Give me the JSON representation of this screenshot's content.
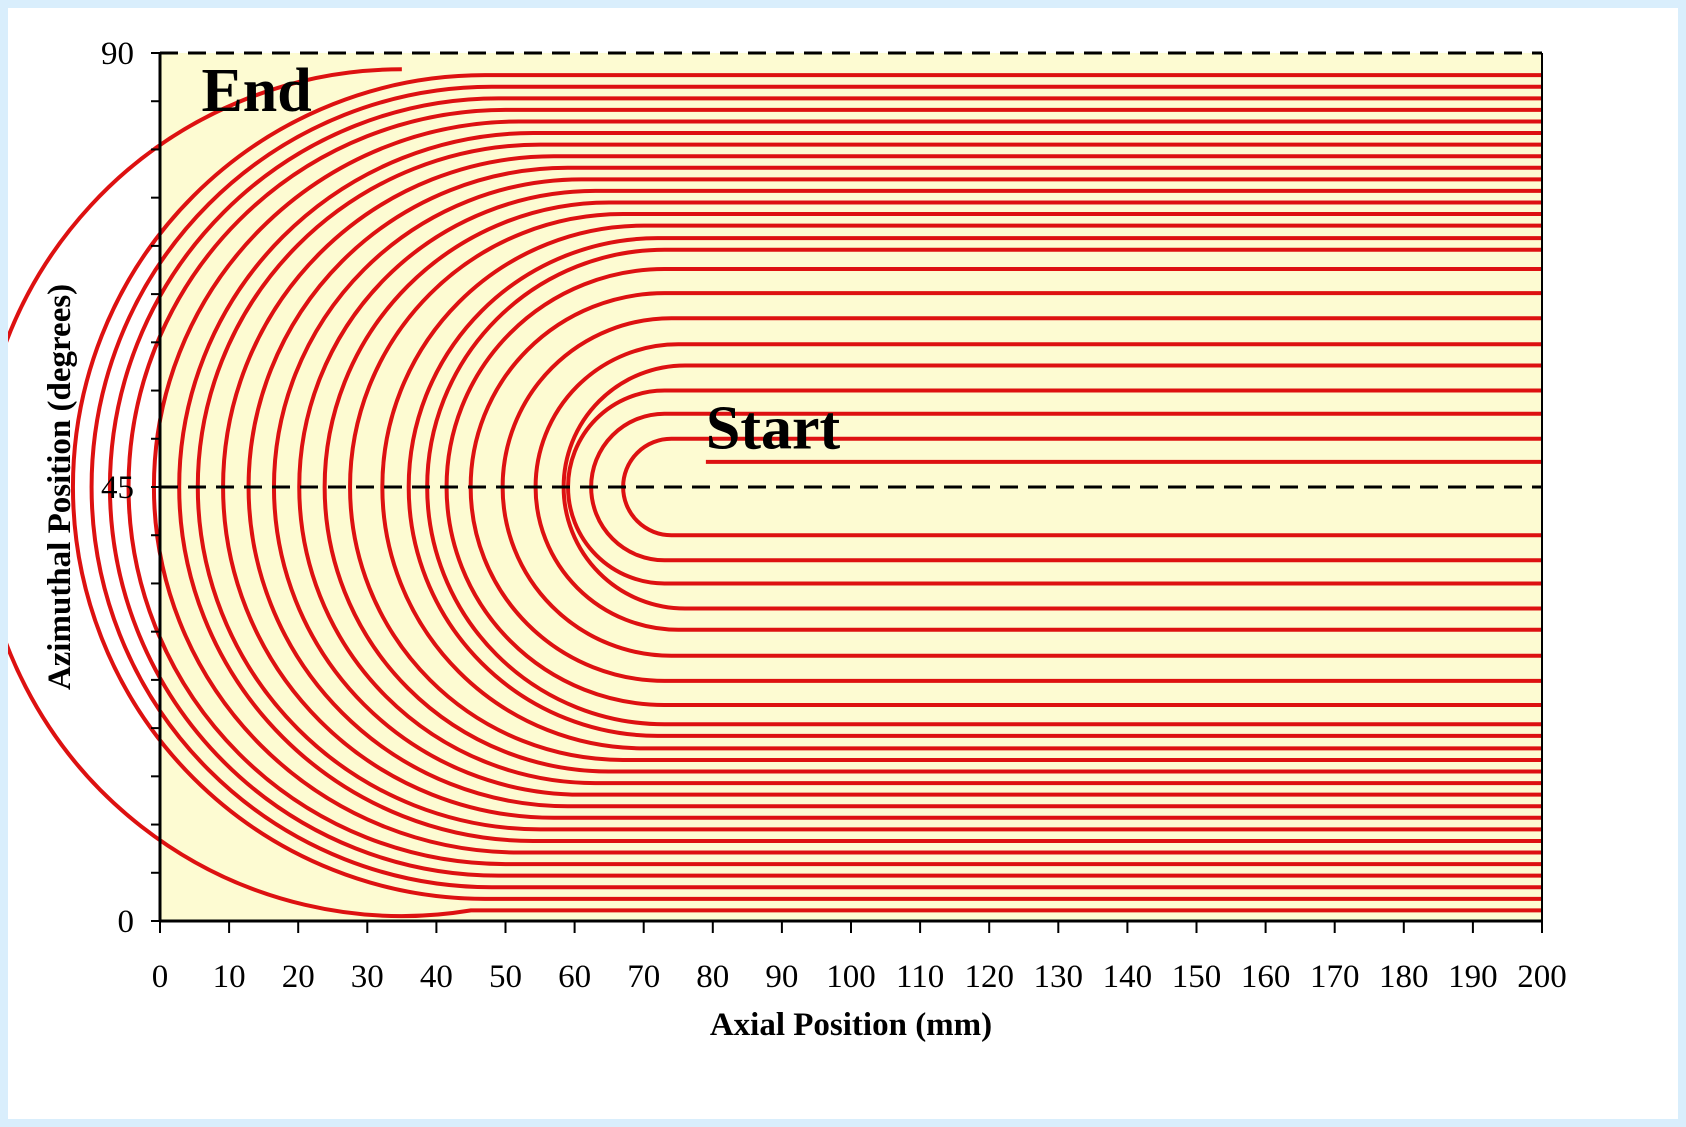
{
  "colors": {
    "page_border": "#d9eefc",
    "plot_background": "#fdfbd2",
    "path": "#dd1111",
    "axis": "#000000",
    "reference_line": "#000000"
  },
  "chart_data": {
    "type": "line",
    "title": "",
    "xlabel": "Axial Position (mm)",
    "ylabel": "Azimuthal Position (degrees)",
    "xlim": [
      0,
      200
    ],
    "ylim": [
      0,
      90
    ],
    "x_ticks": [
      "0",
      "10",
      "20",
      "30",
      "40",
      "50",
      "60",
      "70",
      "80",
      "90",
      "100",
      "110",
      "120",
      "130",
      "140",
      "150",
      "160",
      "170",
      "180",
      "190",
      "200"
    ],
    "y_ticks": [
      "0",
      "45",
      "90"
    ],
    "grid": false,
    "legend": "none",
    "series": [
      {
        "description": "Nested hairpin winding paths: for each offset d (degrees) a straight run at 45+d, a semicircular return of radius d centered at 45 degrees, and a straight run at 45-d.",
        "center_azimuth": 45,
        "straight_end_x": 200,
        "offsets": [
          {
            "d": 2.6,
            "start_x": 79
          },
          {
            "d": 5.0,
            "straight_begin_x": 74
          },
          {
            "d": 7.6,
            "straight_begin_x": 73
          },
          {
            "d": 10.0,
            "straight_begin_x": 73
          },
          {
            "d": 12.6,
            "straight_begin_x": 76
          },
          {
            "d": 14.8,
            "straight_begin_x": 75
          },
          {
            "d": 17.5,
            "straight_begin_x": 74
          },
          {
            "d": 20.1,
            "straight_begin_x": 73
          },
          {
            "d": 22.6,
            "straight_begin_x": 73
          },
          {
            "d": 24.6,
            "straight_begin_x": 73
          },
          {
            "d": 25.8,
            "straight_begin_x": 72
          },
          {
            "d": 27.1,
            "straight_begin_x": 70
          },
          {
            "d": 28.3,
            "straight_begin_x": 67
          },
          {
            "d": 29.5,
            "straight_begin_x": 65
          },
          {
            "d": 30.7,
            "straight_begin_x": 63
          },
          {
            "d": 31.9,
            "straight_begin_x": 61
          },
          {
            "d": 33.1,
            "straight_begin_x": 59
          },
          {
            "d": 34.3,
            "straight_begin_x": 57
          },
          {
            "d": 35.5,
            "straight_begin_x": 55
          },
          {
            "d": 36.7,
            "straight_begin_x": 54
          },
          {
            "d": 37.9,
            "straight_begin_x": 52
          },
          {
            "d": 39.1,
            "straight_begin_x": 50
          },
          {
            "d": 40.3,
            "straight_begin_x": 49
          },
          {
            "d": 41.5,
            "straight_begin_x": 48
          },
          {
            "d": 42.7,
            "straight_begin_x": 47
          },
          {
            "d": 43.9,
            "straight_begin_x": 45,
            "end_x": 35
          }
        ]
      }
    ],
    "reference_lines": [
      {
        "orientation": "horizontal",
        "y": 45,
        "style": "dashed"
      },
      {
        "orientation": "horizontal",
        "y": 90,
        "style": "dashed"
      }
    ],
    "annotations": [
      {
        "text": "End",
        "x": 6,
        "y": 84
      },
      {
        "text": "Start",
        "x": 79,
        "y": 49
      }
    ]
  }
}
